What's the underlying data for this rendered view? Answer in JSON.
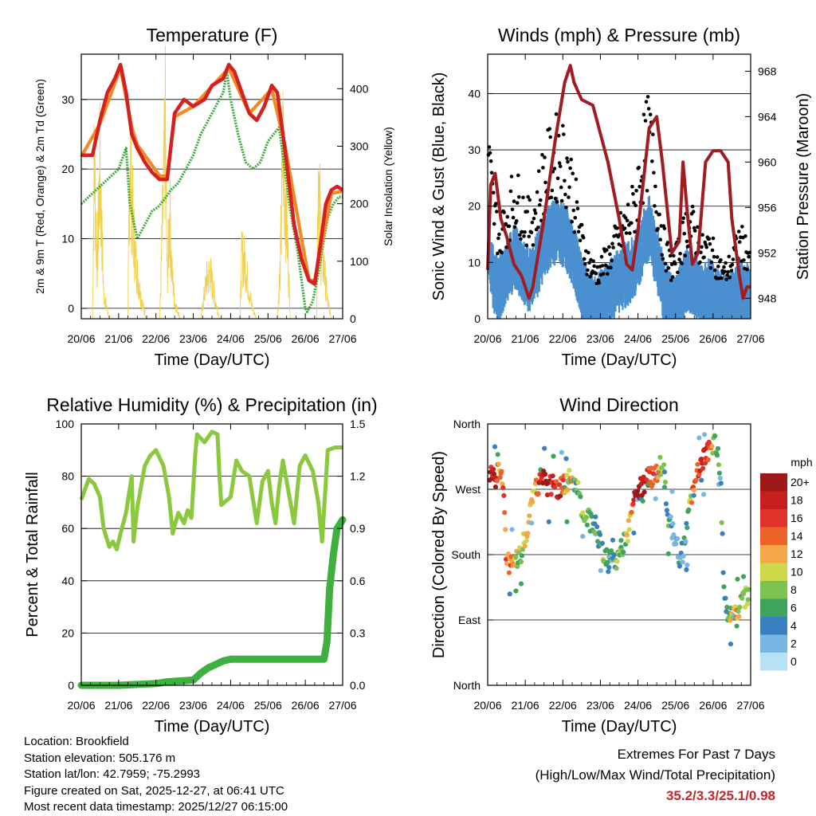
{
  "chart_data": [
    {
      "id": "temperature",
      "type": "line",
      "title": "Temperature (F)",
      "xlabel": "Time (Day/UTC)",
      "ylabel": "2m & 9m T (Red, Orange) & 2m Td (Green)",
      "y2label": "Solar Insolation (Yellow)",
      "ylim": [
        -1.5,
        36.5
      ],
      "yticks": [
        "0",
        "10",
        "20",
        "30"
      ],
      "y2lim": [
        0,
        460
      ],
      "y2ticks": [
        "0",
        "100",
        "200",
        "300",
        "400"
      ],
      "xlim": [
        0,
        7
      ],
      "xticks": [
        "20/06",
        "21/06",
        "22/06",
        "23/06",
        "24/06",
        "25/06",
        "26/06",
        "27/06"
      ],
      "colors": {
        "temp": "#d42020",
        "temp9": "#f08a24",
        "dew": "#3aa83a",
        "solar": "#f2d04a"
      },
      "series": [
        {
          "name": "2m T",
          "x": [
            0,
            0.3,
            0.5,
            0.7,
            0.9,
            1.05,
            1.2,
            1.35,
            1.5,
            1.7,
            1.9,
            2.1,
            2.3,
            2.5,
            2.75,
            3.0,
            3.3,
            3.5,
            3.8,
            3.95,
            4.1,
            4.3,
            4.5,
            4.7,
            4.9,
            5.1,
            5.25,
            5.45,
            5.7,
            5.9,
            6.1,
            6.25,
            6.4,
            6.55,
            6.7,
            6.85,
            7.0
          ],
          "values": [
            22,
            22,
            27,
            31,
            33,
            35,
            31,
            25,
            23,
            21,
            19.5,
            18.5,
            18.5,
            28,
            30,
            29,
            30,
            32,
            33,
            35,
            34,
            31,
            28,
            27,
            29,
            32,
            31,
            23,
            12,
            7,
            4,
            3.5,
            9,
            15,
            17,
            17.5,
            17
          ]
        },
        {
          "name": "9m T",
          "x": [
            0,
            0.5,
            1.05,
            1.35,
            1.5,
            2.1,
            2.3,
            2.5,
            3.0,
            3.95,
            4.5,
            5.1,
            5.45,
            6.1,
            6.25,
            6.7,
            7.0
          ],
          "values": [
            21.8,
            26.5,
            34.5,
            26,
            23.5,
            19,
            19,
            27.5,
            29,
            34.5,
            28,
            31.5,
            23.5,
            4,
            4,
            16.5,
            16.8
          ]
        },
        {
          "name": "2m Td",
          "x": [
            0,
            0.2,
            0.4,
            0.6,
            0.8,
            1.0,
            1.2,
            1.3,
            1.5,
            1.7,
            1.9,
            2.05,
            2.2,
            2.4,
            2.6,
            2.8,
            3.0,
            3.2,
            3.5,
            3.8,
            3.9,
            4.0,
            4.2,
            4.4,
            4.6,
            4.8,
            5.0,
            5.3,
            5.45,
            5.6,
            5.8,
            6.0,
            6.05,
            6.2,
            6.35,
            6.5,
            6.6,
            6.75,
            6.9,
            7.0
          ],
          "values": [
            15,
            16,
            17,
            18,
            19,
            20,
            23,
            15,
            10,
            12,
            14,
            14.5,
            15.5,
            17,
            18,
            20,
            22,
            25,
            28,
            31,
            34,
            30,
            25,
            21,
            20,
            21,
            24,
            26,
            20,
            14,
            8,
            0,
            -0.5,
            1,
            5,
            10,
            13,
            15,
            16,
            16
          ]
        },
        {
          "name": "Solar",
          "axis": "y2",
          "x": [
            0,
            0.3,
            0.35,
            0.42,
            0.5,
            0.6,
            0.75,
            1.25,
            1.3,
            1.37,
            1.45,
            1.55,
            1.65,
            1.75,
            2.1,
            2.25,
            2.3,
            2.37,
            2.42,
            2.5,
            2.65,
            3.2,
            3.35,
            3.45,
            3.55,
            3.7,
            4.25,
            4.3,
            4.4,
            4.5,
            4.6,
            4.7,
            5.25,
            5.33,
            5.4,
            5.5,
            5.6,
            6.3,
            6.35,
            6.42,
            6.5,
            6.6,
            6.7,
            7.0
          ],
          "values": [
            0,
            0,
            400,
            120,
            350,
            60,
            0,
            0,
            430,
            250,
            140,
            80,
            30,
            0,
            0,
            440,
            90,
            260,
            120,
            40,
            0,
            0,
            90,
            110,
            60,
            0,
            0,
            150,
            130,
            60,
            20,
            0,
            0,
            120,
            420,
            230,
            0,
            0,
            380,
            160,
            120,
            40,
            0,
            0
          ]
        }
      ]
    },
    {
      "id": "winds",
      "type": "scatter",
      "title": "Winds (mph) & Pressure (mb)",
      "xlabel": "Time (Day/UTC)",
      "ylabel": "Sonic Wind & Gust (Blue, Black)",
      "y2label": "Station Pressure (Maroon)",
      "ylim": [
        0,
        47
      ],
      "yticks": [
        "0",
        "10",
        "20",
        "30",
        "40"
      ],
      "y2lim": [
        946.2,
        969.5
      ],
      "y2ticks": [
        "948",
        "952",
        "956",
        "960",
        "964",
        "968"
      ],
      "xlim": [
        0,
        7
      ],
      "xticks": [
        "20/06",
        "21/06",
        "22/06",
        "23/06",
        "24/06",
        "25/06",
        "26/06",
        "27/06"
      ],
      "colors": {
        "wind": "#4a8fd0",
        "gust": "#000000",
        "pressure": "#a01c22"
      },
      "series": [
        {
          "name": "Sonic Wind",
          "x": [
            0,
            0.15,
            0.3,
            0.5,
            0.7,
            0.9,
            1.1,
            1.3,
            1.5,
            1.7,
            1.9,
            2.1,
            2.3,
            2.5,
            2.7,
            2.9,
            3.1,
            3.3,
            3.5,
            3.7,
            3.9,
            4.1,
            4.3,
            4.5,
            4.7,
            4.9,
            5.1,
            5.3,
            5.5,
            5.7,
            5.9,
            6.1,
            6.3,
            6.5,
            6.7,
            6.9,
            7.0
          ],
          "values": [
            14,
            8,
            6,
            9,
            12,
            10,
            8,
            10,
            14,
            16,
            17,
            15,
            12,
            7,
            4,
            3,
            5,
            6,
            8,
            9,
            10,
            14,
            17,
            12,
            6,
            3,
            5,
            8,
            7,
            5,
            6,
            4,
            3,
            4,
            6,
            5,
            5
          ]
        },
        {
          "name": "Gust",
          "x": [
            0,
            0.15,
            0.3,
            0.5,
            0.7,
            0.9,
            1.1,
            1.3,
            1.5,
            1.7,
            1.9,
            2.1,
            2.3,
            2.5,
            2.7,
            2.9,
            3.1,
            3.3,
            3.5,
            3.7,
            3.9,
            4.1,
            4.3,
            4.5,
            4.7,
            4.9,
            5.1,
            5.3,
            5.5,
            5.7,
            5.9,
            6.1,
            6.3,
            6.5,
            6.7,
            6.9,
            7.0
          ],
          "values": [
            30,
            20,
            15,
            18,
            22,
            20,
            17,
            20,
            26,
            28,
            30,
            28,
            22,
            14,
            10,
            8,
            10,
            12,
            15,
            17,
            20,
            28,
            33,
            22,
            13,
            9,
            12,
            17,
            16,
            12,
            13,
            10,
            8,
            10,
            14,
            12,
            12
          ]
        },
        {
          "name": "Pressure",
          "axis": "y2",
          "x": [
            0,
            0.08,
            0.2,
            0.35,
            0.5,
            0.7,
            0.9,
            1.1,
            1.2,
            1.5,
            1.8,
            2.05,
            2.2,
            2.3,
            2.5,
            2.8,
            3.2,
            3.5,
            3.7,
            3.85,
            4.0,
            4.3,
            4.5,
            4.65,
            4.9,
            5.1,
            5.2,
            5.3,
            5.45,
            5.6,
            5.8,
            6.0,
            6.2,
            6.4,
            6.5,
            6.7,
            6.8,
            6.9,
            7.0
          ],
          "values": [
            950.5,
            958,
            959,
            955,
            953.5,
            951,
            950,
            948,
            949,
            955,
            962,
            967,
            968.5,
            967,
            965.5,
            965,
            960,
            955,
            951,
            950.5,
            954,
            963,
            964,
            960,
            952,
            953,
            960,
            956,
            951,
            952,
            960,
            961,
            961,
            960,
            955,
            950,
            948,
            949,
            949
          ]
        }
      ]
    },
    {
      "id": "humidity",
      "type": "line",
      "title": "Relative Humidity (%) & Precipitation (in)",
      "xlabel": "Time (Day/UTC)",
      "ylabel": "Percent & Total Rainfall",
      "ylim": [
        0,
        100
      ],
      "yticks": [
        "0",
        "20",
        "40",
        "60",
        "80",
        "100"
      ],
      "y2lim": [
        0,
        1.5
      ],
      "y2ticks": [
        "0.0",
        "0.3",
        "0.6",
        "0.9",
        "1.2",
        "1.5"
      ],
      "xlim": [
        0,
        7
      ],
      "xticks": [
        "20/06",
        "21/06",
        "22/06",
        "23/06",
        "24/06",
        "25/06",
        "26/06",
        "27/06"
      ],
      "colors": {
        "rh": "#8ac83e",
        "precip": "#3fb03f"
      },
      "series": [
        {
          "name": "Relative Humidity",
          "x": [
            0,
            0.1,
            0.2,
            0.35,
            0.5,
            0.6,
            0.75,
            0.85,
            0.95,
            1.05,
            1.2,
            1.35,
            1.4,
            1.5,
            1.6,
            1.7,
            1.85,
            2.0,
            2.2,
            2.35,
            2.45,
            2.5,
            2.6,
            2.75,
            2.85,
            2.95,
            3.05,
            3.1,
            3.3,
            3.5,
            3.65,
            3.7,
            3.75,
            4.0,
            4.15,
            4.3,
            4.5,
            4.6,
            4.7,
            4.85,
            5.0,
            5.1,
            5.2,
            5.3,
            5.4,
            5.55,
            5.7,
            5.85,
            6.0,
            6.2,
            6.35,
            6.45,
            6.6,
            6.8,
            7.0
          ],
          "values": [
            71,
            75,
            79,
            77,
            72,
            60,
            53,
            55,
            52,
            58,
            66,
            80,
            55,
            68,
            76,
            84,
            88,
            90,
            84,
            72,
            58,
            61,
            66,
            62,
            67,
            64,
            88,
            96,
            93,
            97,
            96,
            80,
            69,
            72,
            86,
            82,
            80,
            71,
            62,
            78,
            82,
            70,
            62,
            76,
            86,
            74,
            62,
            84,
            88,
            82,
            70,
            55,
            90,
            91,
            91
          ]
        },
        {
          "name": "Total Precipitation",
          "axis": "y2",
          "x": [
            0,
            1.0,
            2.0,
            2.3,
            3.0,
            3.2,
            3.4,
            3.6,
            3.8,
            4.0,
            5.0,
            6.0,
            6.5,
            6.58,
            6.65,
            6.75,
            6.85,
            7.0
          ],
          "values": [
            0,
            0,
            0.01,
            0.02,
            0.03,
            0.07,
            0.1,
            0.12,
            0.14,
            0.15,
            0.15,
            0.15,
            0.15,
            0.25,
            0.55,
            0.75,
            0.9,
            0.95
          ]
        }
      ]
    },
    {
      "id": "wind-direction",
      "type": "scatter",
      "title": "Wind Direction",
      "xlabel": "Time (Day/UTC)",
      "ylabel": "Direction (Colored By Speed)",
      "ylim": [
        0,
        360
      ],
      "ytick_values": [
        0,
        90,
        180,
        270,
        360
      ],
      "yticks": [
        "North",
        "East",
        "South",
        "West",
        "North"
      ],
      "xlim": [
        0,
        7
      ],
      "xticks": [
        "20/06",
        "21/06",
        "22/06",
        "23/06",
        "24/06",
        "25/06",
        "26/06",
        "27/06"
      ],
      "colorbar_title": "mph",
      "colorbar_labels": [
        "20+",
        "18",
        "16",
        "14",
        "12",
        "10",
        "8",
        "6",
        "4",
        "2",
        "0"
      ],
      "colorbar_colors": [
        "#9e1a1a",
        "#c81e1e",
        "#e0322a",
        "#ec6228",
        "#f5a646",
        "#cdd94a",
        "#7cc252",
        "#3fa35c",
        "#3a80bf",
        "#79b6e3",
        "#b9e1f4"
      ],
      "series": [
        {
          "name": "Direction",
          "x": [
            0.1,
            0.2,
            0.3,
            0.4,
            0.5,
            0.6,
            0.7,
            0.8,
            0.9,
            1.0,
            1.1,
            1.2,
            1.3,
            1.4,
            1.5,
            1.6,
            1.7,
            1.8,
            1.9,
            2.0,
            2.1,
            2.2,
            2.3,
            2.4,
            2.5,
            2.6,
            2.7,
            2.8,
            2.9,
            3.0,
            3.1,
            3.2,
            3.3,
            3.4,
            3.5,
            3.6,
            3.7,
            3.8,
            3.9,
            4.0,
            4.1,
            4.2,
            4.3,
            4.4,
            4.5,
            4.6,
            4.7,
            4.8,
            4.9,
            5.0,
            5.1,
            5.2,
            5.3,
            5.4,
            5.5,
            5.6,
            5.7,
            5.8,
            5.9,
            6.0,
            6.1,
            6.2,
            6.3,
            6.4,
            6.5,
            6.6,
            6.7,
            6.8,
            6.9
          ],
          "values": [
            288,
            282,
            300,
            290,
            175,
            162,
            165,
            180,
            185,
            205,
            228,
            255,
            270,
            278,
            282,
            274,
            278,
            272,
            270,
            272,
            278,
            290,
            285,
            270,
            245,
            240,
            230,
            220,
            210,
            200,
            180,
            170,
            175,
            172,
            178,
            190,
            205,
            225,
            250,
            270,
            275,
            280,
            285,
            290,
            295,
            300,
            292,
            230,
            215,
            200,
            175,
            185,
            215,
            250,
            272,
            300,
            310,
            320,
            325,
            330,
            330,
            290,
            110,
            100,
            105,
            100,
            110,
            118,
            120
          ],
          "speeds": [
            18,
            20,
            12,
            14,
            12,
            14,
            10,
            8,
            8,
            10,
            12,
            10,
            14,
            18,
            20,
            20,
            18,
            16,
            18,
            14,
            10,
            12,
            8,
            6,
            10,
            8,
            6,
            6,
            4,
            6,
            8,
            6,
            4,
            6,
            8,
            6,
            10,
            12,
            16,
            20,
            20,
            18,
            16,
            14,
            12,
            10,
            8,
            6,
            4,
            4,
            4,
            4,
            6,
            10,
            14,
            16,
            18,
            16,
            14,
            10,
            6,
            4,
            6,
            8,
            10,
            12,
            10,
            8,
            8
          ]
        }
      ]
    }
  ],
  "info": {
    "location": "Location: Brookfield",
    "elevation": "Station elevation: 505.176 m",
    "latlon": "Station lat/lon: 42.7959; -75.2993",
    "created": "Figure created on Sat, 2025-12-27, at 06:41 UTC",
    "recent": "Most recent data timestamp: 2025/12/27 06:15:00"
  },
  "extremes": {
    "title": "Extremes For Past 7 Days",
    "subtitle": "(High/Low/Max Wind/Total Precipitation)",
    "values": "35.2/3.3/25.1/0.98"
  }
}
